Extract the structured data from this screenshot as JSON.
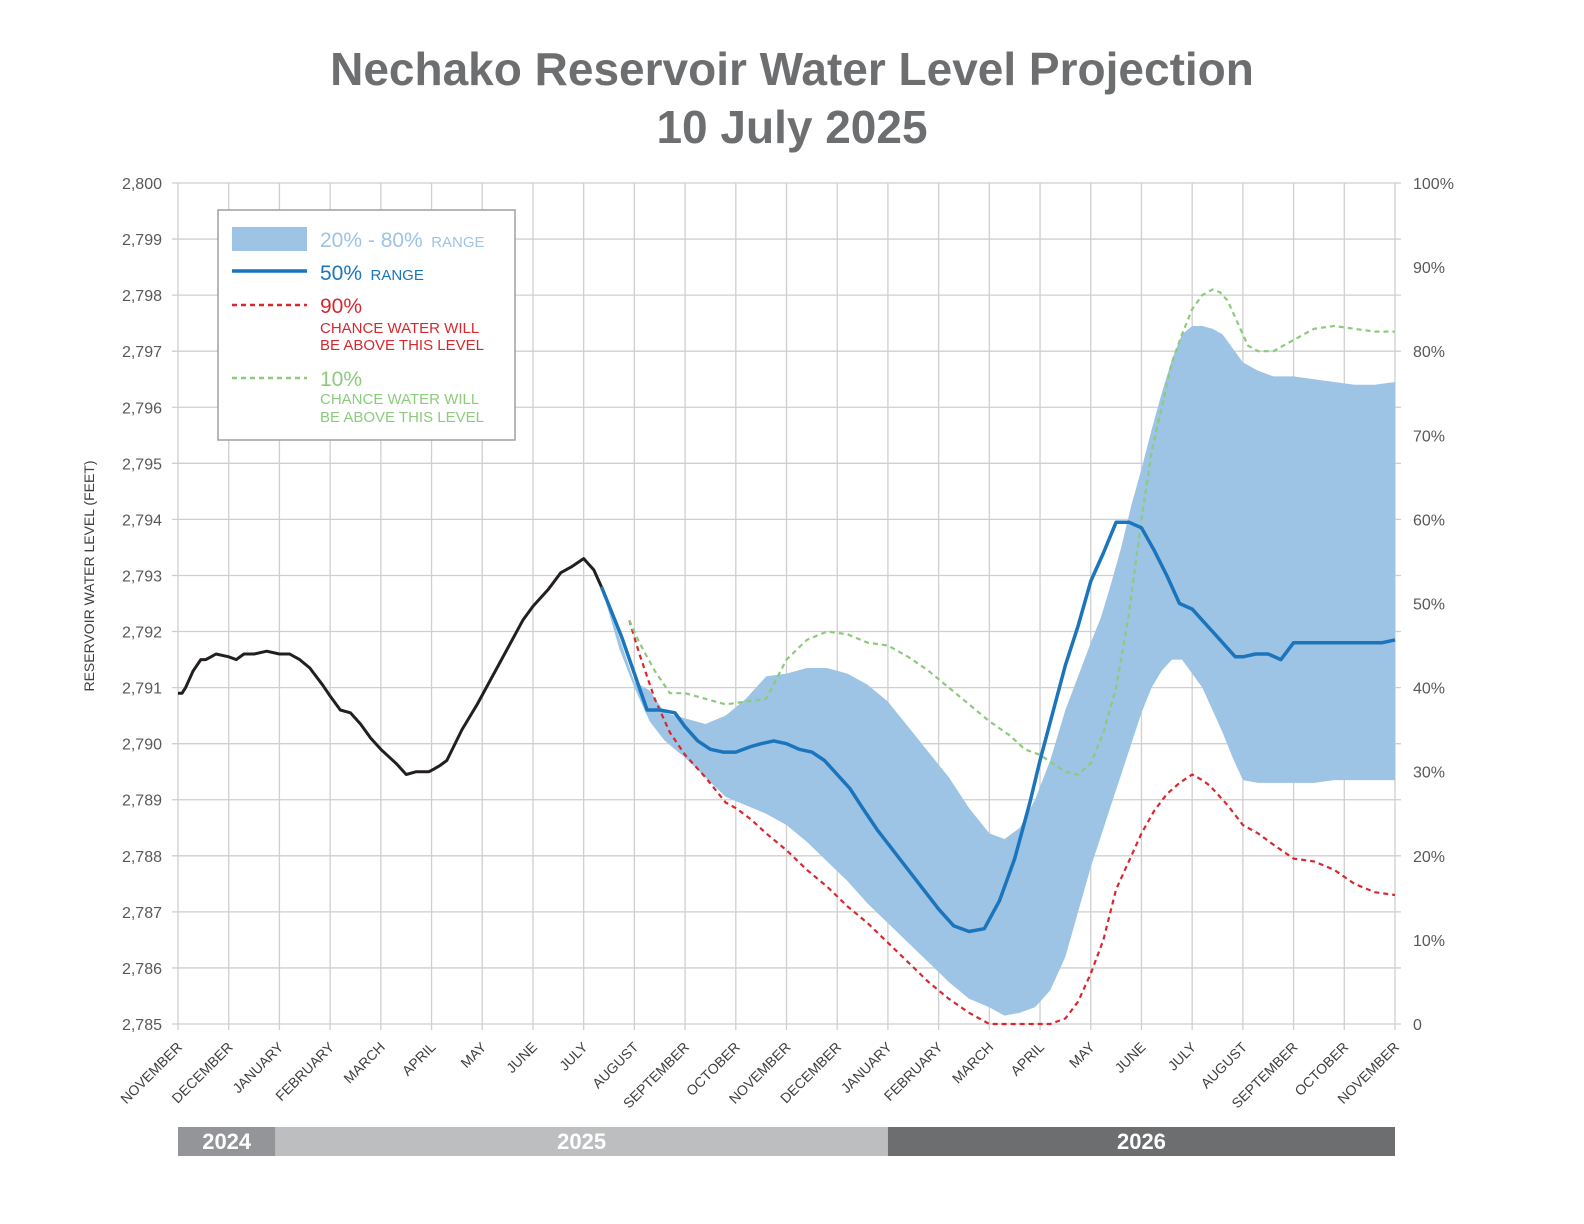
{
  "title": {
    "line1": "Nechako Reservoir Water Level Projection",
    "line2": "10 July 2025"
  },
  "colors": {
    "observed": "#231f20",
    "median": "#1b75bc",
    "band": "#9dc3e5",
    "p90": "#d7282f",
    "p10": "#8ccb7d",
    "grid": "#cfcfcf",
    "year2024": "#939598",
    "year2025": "#bcbec0",
    "year2026": "#6d6e70"
  },
  "chart_data": {
    "type": "line",
    "title": "Nechako Reservoir Water Level Projection 10 July 2025",
    "ylabel": "RESERVOIR WATER LEVEL (FEET)",
    "ylim": [
      2785,
      2800
    ],
    "yticks": [
      "2,785",
      "2,786",
      "2,787",
      "2,788",
      "2,789",
      "2,790",
      "2,791",
      "2,792",
      "2,793",
      "2,794",
      "2,795",
      "2,796",
      "2,797",
      "2,798",
      "2,799",
      "2,800"
    ],
    "y2ticks": [
      "0",
      "10%",
      "20%",
      "30%",
      "40%",
      "50%",
      "60%",
      "70%",
      "80%",
      "90%",
      "100%"
    ],
    "months": [
      "NOVEMBER",
      "DECEMBER",
      "JANUARY",
      "FEBRUARY",
      "MARCH",
      "APRIL",
      "MAY",
      "JUNE",
      "JULY",
      "AUGUST",
      "SEPTEMBER",
      "OCTOBER",
      "NOVEMBER",
      "DECEMBER",
      "JANUARY",
      "FEBRUARY",
      "MARCH",
      "APRIL",
      "MAY",
      "JUNE",
      "JULY",
      "AUGUST",
      "SEPTEMBER",
      "OCTOBER",
      "NOVEMBER"
    ],
    "years": [
      {
        "label": "2024",
        "start": 0,
        "end": 1.92
      },
      {
        "label": "2025",
        "start": 1.92,
        "end": 14.0
      },
      {
        "label": "2026",
        "start": 14.0,
        "end": 24.0
      }
    ],
    "grid": true,
    "legend_position": "top-left",
    "legend": {
      "band": {
        "big": "20% - 80%",
        "small": "RANGE"
      },
      "median": {
        "big": "50%",
        "small": "RANGE"
      },
      "p90": {
        "big": "90%",
        "line1": "CHANCE WATER WILL",
        "line2": "BE ABOVE THIS LEVEL"
      },
      "p10": {
        "big": "10%",
        "line1": "CHANCE WATER WILL",
        "line2": "BE ABOVE THIS LEVEL"
      }
    },
    "observed": {
      "x": [
        0,
        0.08,
        0.15,
        0.3,
        0.45,
        0.55,
        0.65,
        0.75,
        1.0,
        1.15,
        1.3,
        1.5,
        1.75,
        2.0,
        2.2,
        2.4,
        2.6,
        2.85,
        3.0,
        3.2,
        3.4,
        3.6,
        3.8,
        4.0,
        4.3,
        4.5,
        4.7,
        4.95,
        5.05,
        5.15,
        5.3,
        5.6,
        5.9,
        6.2,
        6.5,
        6.8,
        7.0,
        7.3,
        7.55,
        7.75,
        8.0,
        8.2,
        8.35
      ],
      "y": [
        2790.9,
        2790.9,
        2791.0,
        2791.3,
        2791.5,
        2791.5,
        2791.55,
        2791.6,
        2791.55,
        2791.5,
        2791.6,
        2791.6,
        2791.65,
        2791.6,
        2791.6,
        2791.5,
        2791.35,
        2791.05,
        2790.85,
        2790.6,
        2790.55,
        2790.35,
        2790.1,
        2789.9,
        2789.65,
        2789.45,
        2789.5,
        2789.5,
        2789.55,
        2789.6,
        2789.7,
        2790.25,
        2790.7,
        2791.2,
        2791.7,
        2792.2,
        2792.45,
        2792.75,
        2793.05,
        2793.15,
        2793.3,
        2793.1,
        2792.8
      ]
    },
    "series": [
      {
        "name": "50% RANGE",
        "x": [
          8.35,
          8.55,
          8.75,
          9.0,
          9.25,
          9.5,
          9.8,
          10.0,
          10.25,
          10.5,
          10.75,
          11.0,
          11.3,
          11.5,
          11.75,
          12.0,
          12.25,
          12.5,
          12.75,
          13.0,
          13.25,
          13.5,
          13.8,
          14.1,
          14.4,
          14.7,
          15.0,
          15.3,
          15.6,
          15.9,
          16.2,
          16.5,
          16.8,
          17.0,
          17.25,
          17.5,
          17.75,
          18.0,
          18.25,
          18.5,
          18.75,
          19.0,
          19.25,
          19.5,
          19.75,
          20.0,
          20.2,
          20.4,
          20.55,
          20.7,
          20.85,
          21.0,
          21.25,
          21.5,
          21.75,
          22.0,
          22.25,
          22.5,
          22.75,
          23.0,
          23.25,
          23.5,
          23.75,
          24.0
        ],
        "y": [
          2792.8,
          2792.35,
          2791.9,
          2791.25,
          2790.6,
          2790.6,
          2790.55,
          2790.3,
          2790.05,
          2789.9,
          2789.85,
          2789.85,
          2789.95,
          2790.0,
          2790.05,
          2790.0,
          2789.9,
          2789.85,
          2789.7,
          2789.45,
          2789.2,
          2788.85,
          2788.45,
          2788.1,
          2787.75,
          2787.4,
          2787.05,
          2786.75,
          2786.65,
          2786.7,
          2787.2,
          2787.95,
          2788.95,
          2789.7,
          2790.55,
          2791.4,
          2792.1,
          2792.9,
          2793.4,
          2793.95,
          2793.95,
          2793.85,
          2793.45,
          2793.0,
          2792.5,
          2792.4,
          2792.2,
          2792.0,
          2791.85,
          2791.7,
          2791.55,
          2791.55,
          2791.6,
          2791.6,
          2791.5,
          2791.8,
          2791.8,
          2791.8,
          2791.8,
          2791.8,
          2791.8,
          2791.8,
          2791.8,
          2791.85
        ]
      },
      {
        "name": "90% CHANCE WATER WILL BE ABOVE THIS LEVEL",
        "x": [
          8.9,
          9.1,
          9.4,
          9.7,
          10.0,
          10.4,
          10.8,
          11.0,
          11.3,
          11.6,
          12.0,
          12.4,
          12.8,
          13.2,
          13.6,
          14.0,
          14.4,
          14.8,
          15.2,
          15.6,
          16.0,
          16.4,
          16.7,
          16.9,
          17.2,
          17.5,
          17.75,
          18.0,
          18.25,
          18.5,
          18.75,
          19.0,
          19.25,
          19.5,
          19.75,
          20.0,
          20.2,
          20.35,
          20.5,
          20.7,
          21.0,
          21.3,
          21.6,
          22.0,
          22.4,
          22.8,
          23.2,
          23.6,
          24.0
        ],
        "y": [
          2792.2,
          2791.6,
          2790.8,
          2790.2,
          2789.8,
          2789.4,
          2788.95,
          2788.85,
          2788.65,
          2788.4,
          2788.1,
          2787.75,
          2787.45,
          2787.1,
          2786.8,
          2786.45,
          2786.1,
          2785.75,
          2785.45,
          2785.2,
          2785.0,
          2785.0,
          2785.0,
          2785.0,
          2785.0,
          2785.1,
          2785.4,
          2785.9,
          2786.5,
          2787.4,
          2787.9,
          2788.4,
          2788.8,
          2789.1,
          2789.3,
          2789.45,
          2789.35,
          2789.25,
          2789.1,
          2788.9,
          2788.55,
          2788.4,
          2788.2,
          2787.95,
          2787.9,
          2787.75,
          2787.5,
          2787.35,
          2787.3
        ]
      },
      {
        "name": "10% CHANCE WATER WILL BE ABOVE THIS LEVEL",
        "x": [
          8.9,
          9.1,
          9.4,
          9.7,
          10.0,
          10.4,
          10.8,
          11.2,
          11.6,
          12.0,
          12.4,
          12.8,
          13.2,
          13.6,
          14.0,
          14.4,
          14.8,
          15.2,
          15.6,
          16.0,
          16.4,
          16.7,
          17.0,
          17.25,
          17.5,
          17.75,
          18.0,
          18.25,
          18.5,
          18.75,
          19.0,
          19.2,
          19.4,
          19.6,
          19.8,
          20.0,
          20.2,
          20.4,
          20.55,
          20.7,
          20.9,
          21.1,
          21.3,
          21.6,
          22.0,
          22.4,
          22.8,
          23.2,
          23.6,
          24.0
        ],
        "y": [
          2792.2,
          2791.8,
          2791.3,
          2790.9,
          2790.9,
          2790.8,
          2790.7,
          2790.75,
          2790.8,
          2791.5,
          2791.85,
          2792.0,
          2791.95,
          2791.8,
          2791.75,
          2791.55,
          2791.3,
          2791.0,
          2790.7,
          2790.4,
          2790.15,
          2789.9,
          2789.8,
          2789.65,
          2789.5,
          2789.45,
          2789.65,
          2790.2,
          2791.0,
          2792.3,
          2794.0,
          2795.2,
          2796.0,
          2796.8,
          2797.3,
          2797.75,
          2798.0,
          2798.1,
          2798.05,
          2797.9,
          2797.5,
          2797.1,
          2797.0,
          2797.0,
          2797.2,
          2797.4,
          2797.45,
          2797.4,
          2797.35,
          2797.35
        ]
      },
      {
        "name": "20% - 80% RANGE",
        "x": [
          8.35,
          8.7,
          9.0,
          9.3,
          9.6,
          10.0,
          10.4,
          10.8,
          11.2,
          11.6,
          12.0,
          12.4,
          12.8,
          13.2,
          13.6,
          14.0,
          14.4,
          14.8,
          15.2,
          15.6,
          16.0,
          16.3,
          16.6,
          16.9,
          17.2,
          17.5,
          17.75,
          18.0,
          18.2,
          18.4,
          18.6,
          18.8,
          19.0,
          19.2,
          19.4,
          19.6,
          19.8,
          20.0,
          20.2,
          20.4,
          20.6,
          20.8,
          21.0,
          21.3,
          21.6,
          22.0,
          22.4,
          22.8,
          23.2,
          23.6,
          24.0
        ],
        "low": [
          2792.8,
          2791.7,
          2791.0,
          2790.4,
          2790.05,
          2789.75,
          2789.4,
          2789.05,
          2788.9,
          2788.75,
          2788.55,
          2788.25,
          2787.9,
          2787.55,
          2787.15,
          2786.8,
          2786.45,
          2786.1,
          2785.75,
          2785.45,
          2785.3,
          2785.15,
          2785.2,
          2785.3,
          2785.6,
          2786.2,
          2787.0,
          2787.8,
          2788.35,
          2788.9,
          2789.45,
          2790.0,
          2790.55,
          2791.0,
          2791.3,
          2791.5,
          2791.5,
          2791.25,
          2791.0,
          2790.6,
          2790.2,
          2789.75,
          2789.35,
          2789.3,
          2789.3,
          2789.3,
          2789.3,
          2789.35,
          2789.35,
          2789.35,
          2789.35
        ],
        "high": [
          2792.8,
          2791.9,
          2791.1,
          2790.95,
          2790.55,
          2790.45,
          2790.35,
          2790.5,
          2790.8,
          2791.2,
          2791.25,
          2791.35,
          2791.35,
          2791.25,
          2791.05,
          2790.75,
          2790.3,
          2789.85,
          2789.4,
          2788.85,
          2788.4,
          2788.3,
          2788.5,
          2789.0,
          2789.7,
          2790.6,
          2791.2,
          2791.8,
          2792.25,
          2792.85,
          2793.5,
          2794.25,
          2794.9,
          2795.6,
          2796.25,
          2796.85,
          2797.3,
          2797.45,
          2797.45,
          2797.4,
          2797.3,
          2797.05,
          2796.8,
          2796.65,
          2796.55,
          2796.55,
          2796.5,
          2796.45,
          2796.4,
          2796.4,
          2796.45
        ]
      }
    ]
  }
}
